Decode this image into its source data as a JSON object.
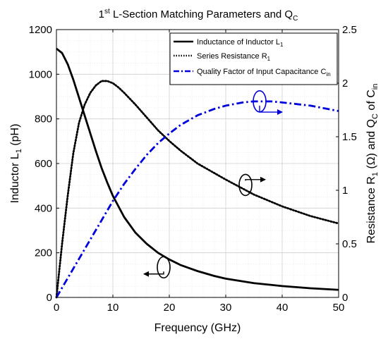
{
  "chart_data": {
    "type": "line",
    "title_main": "1",
    "title_sup": "st",
    "title_rest": " L-Section Matching Parameters and Q",
    "title_sub": "C",
    "xlabel": "Frequency (GHz)",
    "ylabel_left": {
      "main": "Inductor L",
      "sub": "1",
      "rest": " (pH)"
    },
    "ylabel_right": {
      "part1": "Resistance R",
      "sub1": "1",
      "part2": " (Ω) and Q",
      "sub2": "C",
      "part3": " of C",
      "sub3": "in"
    },
    "xlim": [
      0,
      50
    ],
    "ylim_left": [
      0,
      1200
    ],
    "ylim_right": [
      0,
      2.5
    ],
    "xticks": [
      "0",
      "10",
      "20",
      "30",
      "40",
      "50"
    ],
    "yticks_left": [
      "0",
      "200",
      "400",
      "600",
      "800",
      "1000",
      "1200"
    ],
    "yticks_right": [
      "0",
      "0.5",
      "1",
      "1.5",
      "2",
      "2.5"
    ],
    "grid": true,
    "legend_position": "top-right",
    "series": [
      {
        "name": "Inductance of Inductor L",
        "name_sub": "1",
        "axis": "left",
        "color": "#000000",
        "style": "solid",
        "x": [
          0,
          1,
          2,
          3,
          4,
          5,
          6,
          7,
          8,
          9,
          10,
          12,
          14,
          16,
          18,
          20,
          22,
          25,
          28,
          30,
          35,
          40,
          45,
          50
        ],
        "y": [
          1115,
          1095,
          1045,
          975,
          895,
          815,
          735,
          655,
          580,
          515,
          455,
          360,
          290,
          240,
          200,
          170,
          145,
          118,
          96,
          84,
          64,
          51,
          41,
          34
        ]
      },
      {
        "name": "Series Resistance R",
        "name_sub": "1",
        "axis": "right",
        "color": "#000000",
        "style": "dotted",
        "x": [
          0,
          1,
          2,
          3,
          4,
          5,
          6,
          7,
          8,
          9,
          10,
          11,
          12,
          14,
          16,
          18,
          20,
          22,
          25,
          30,
          35,
          40,
          45,
          50
        ],
        "y": [
          0.0,
          0.5,
          0.95,
          1.35,
          1.63,
          1.8,
          1.91,
          1.98,
          2.02,
          2.02,
          2.0,
          1.96,
          1.91,
          1.8,
          1.68,
          1.56,
          1.46,
          1.37,
          1.25,
          1.1,
          0.96,
          0.85,
          0.76,
          0.69
        ]
      },
      {
        "name": "Quality Factor of Input Capacitance C",
        "name_sub": "in",
        "axis": "right",
        "color": "#0000dd",
        "style": "dashdot",
        "x": [
          0,
          2,
          4,
          6,
          8,
          10,
          12,
          14,
          16,
          18,
          20,
          22,
          25,
          28,
          30,
          33,
          35,
          38,
          40,
          45,
          50
        ],
        "y": [
          0.0,
          0.18,
          0.36,
          0.54,
          0.72,
          0.9,
          1.06,
          1.2,
          1.33,
          1.44,
          1.53,
          1.61,
          1.7,
          1.76,
          1.79,
          1.82,
          1.83,
          1.83,
          1.82,
          1.79,
          1.74
        ]
      }
    ],
    "annotations": [
      {
        "ellipse": [
          19,
          135
        ],
        "axis": "left",
        "arrow_to": [
          15.5,
          105
        ]
      },
      {
        "ellipse": [
          33.5,
          1.05
        ],
        "axis": "right",
        "arrow_to": [
          37,
          1.1
        ]
      },
      {
        "ellipse": [
          36,
          1.83
        ],
        "axis": "right",
        "arrow_to": [
          40,
          1.73
        ]
      }
    ]
  }
}
